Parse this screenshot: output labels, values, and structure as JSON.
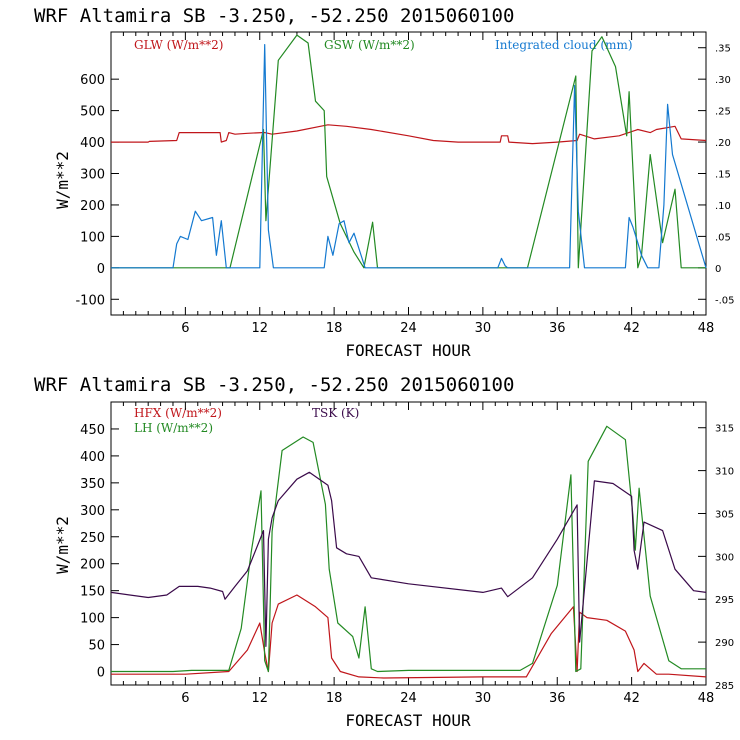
{
  "colors": {
    "red": "#c0161b",
    "green": "#238a23",
    "blue": "#1479d0",
    "purple": "#3a0a4a",
    "axis": "#000000"
  },
  "chart_data": [
    {
      "type": "line",
      "title": "WRF   Altamira  SB  -3.250, -52.250  2015060100",
      "xlabel": "FORECAST HOUR",
      "ylabel": "W/m**2",
      "xlim": [
        0,
        48
      ],
      "ylim": [
        -150,
        750
      ],
      "y2lim": [
        -0.075,
        0.375
      ],
      "xticks": [
        6,
        12,
        18,
        24,
        30,
        36,
        42,
        48
      ],
      "xtick_labels": [
        "6",
        "12",
        "18",
        "24",
        "30",
        "36",
        "42",
        "48"
      ],
      "yticks": [
        -100,
        0,
        100,
        200,
        300,
        400,
        500,
        600
      ],
      "ytick_labels": [
        "-100",
        "0",
        "100",
        "200",
        "300",
        "400",
        "500",
        "600"
      ],
      "y2ticks": [
        -0.05,
        0,
        0.05,
        0.1,
        0.15,
        0.2,
        0.25,
        0.3,
        0.35
      ],
      "y2tick_labels": [
        "-.05",
        "0",
        ".05",
        ".10",
        ".15",
        ".20",
        ".25",
        ".30",
        ".35"
      ],
      "legend": [
        "GLW (W/m**2)",
        "GSW (W/m**2)",
        "Integrated cloud (mm)"
      ],
      "series": [
        {
          "name": "GLW (W/m**2)",
          "color": "red",
          "axis": "left",
          "x": [
            0,
            3,
            3.1,
            5.3,
            5.5,
            8.8,
            8.9,
            9.3,
            9.5,
            10,
            11,
            12.2,
            12.4,
            13,
            15,
            17.5,
            19,
            21,
            24,
            26,
            28,
            30,
            31.4,
            31.5,
            32,
            32.1,
            34,
            36,
            37.6,
            37.8,
            39,
            41,
            42.5,
            43.5,
            44,
            45.5,
            46,
            48
          ],
          "y": [
            400,
            400,
            402,
            405,
            430,
            430,
            400,
            405,
            430,
            425,
            428,
            430,
            430,
            425,
            435,
            455,
            450,
            440,
            420,
            405,
            400,
            400,
            400,
            420,
            420,
            400,
            395,
            400,
            405,
            425,
            410,
            420,
            440,
            430,
            440,
            450,
            410,
            405
          ]
        },
        {
          "name": "GSW (W/m**2)",
          "color": "green",
          "axis": "left",
          "x": [
            0,
            9.6,
            12.3,
            12.5,
            13.5,
            15,
            15.9,
            16.5,
            17.2,
            17.4,
            18.5,
            19.6,
            20.4,
            21.1,
            21.5,
            33.6,
            37.5,
            37.7,
            38.8,
            39.6,
            40.7,
            41.6,
            41.8,
            42.5,
            42.8,
            43.5,
            44.5,
            45.5,
            46,
            48
          ],
          "y": [
            0,
            0,
            440,
            150,
            660,
            740,
            715,
            530,
            500,
            290,
            140,
            50,
            0,
            145,
            0,
            0,
            610,
            0,
            690,
            735,
            640,
            420,
            560,
            0,
            40,
            360,
            80,
            250,
            0,
            0
          ]
        },
        {
          "name": "Integrated cloud (mm)",
          "color": "blue",
          "axis": "right",
          "x": [
            0,
            5,
            5.3,
            5.6,
            6.2,
            6.8,
            7.3,
            8.2,
            8.5,
            8.9,
            9.3,
            12,
            12.4,
            12.7,
            13.1,
            17.2,
            17.5,
            17.9,
            18.4,
            18.8,
            19.2,
            19.6,
            20.5,
            31.2,
            31.5,
            31.8,
            32,
            37,
            37.4,
            37.7,
            38.2,
            41.5,
            41.8,
            42.1,
            42.5,
            42.8,
            43.3,
            44.2,
            44.6,
            44.9,
            45.3,
            48
          ],
          "y": [
            0,
            0,
            0.038,
            0.05,
            0.045,
            0.09,
            0.075,
            0.08,
            0.02,
            0.075,
            0,
            0,
            0.355,
            0.06,
            0,
            0,
            0.05,
            0.02,
            0.07,
            0.075,
            0.04,
            0.055,
            0,
            0,
            0.015,
            0.003,
            0,
            0,
            0.29,
            0.09,
            0,
            0,
            0.08,
            0.065,
            0.04,
            0.02,
            0,
            0,
            0.1,
            0.26,
            0.18,
            0
          ]
        }
      ]
    },
    {
      "type": "line",
      "title": "WRF   Altamira  SB  -3.250, -52.250  2015060100",
      "xlabel": "FORECAST HOUR",
      "ylabel": "W/m**2",
      "xlim": [
        0,
        48
      ],
      "ylim": [
        -25,
        500
      ],
      "y2lim": [
        285,
        318
      ],
      "xticks": [
        6,
        12,
        18,
        24,
        30,
        36,
        42,
        48
      ],
      "xtick_labels": [
        "6",
        "12",
        "18",
        "24",
        "30",
        "36",
        "42",
        "48"
      ],
      "yticks": [
        0,
        50,
        100,
        150,
        200,
        250,
        300,
        350,
        400,
        450
      ],
      "ytick_labels": [
        "0",
        "50",
        "100",
        "150",
        "200",
        "250",
        "300",
        "350",
        "400",
        "450"
      ],
      "y2ticks": [
        285,
        290,
        295,
        300,
        305,
        310,
        315
      ],
      "y2tick_labels": [
        "285",
        "290",
        "295",
        "300",
        "305",
        "310",
        "315"
      ],
      "legend": [
        "HFX (W/m**2)",
        "LH  (W/m**2)",
        "TSK (K)"
      ],
      "series": [
        {
          "name": "HFX (W/m**2)",
          "color": "red",
          "axis": "left",
          "x": [
            0,
            6,
            9.5,
            11,
            12,
            12.4,
            12.7,
            13,
            13.5,
            15,
            16.5,
            17.5,
            17.8,
            18.5,
            20,
            22,
            30,
            33.5,
            35.5,
            37.3,
            37.6,
            37.8,
            38.4,
            40,
            41.5,
            42.2,
            42.5,
            43,
            44,
            45,
            48
          ],
          "y": [
            -5,
            -5,
            0,
            40,
            90,
            35,
            0,
            90,
            125,
            142,
            120,
            100,
            25,
            0,
            -10,
            -12,
            -10,
            -10,
            70,
            120,
            0,
            110,
            100,
            95,
            75,
            40,
            0,
            15,
            -5,
            -5,
            -10
          ]
        },
        {
          "name": "LH  (W/m**2)",
          "color": "green",
          "axis": "left",
          "x": [
            0,
            5,
            6.5,
            9.5,
            10.5,
            11.3,
            12.1,
            12.4,
            12.7,
            13,
            13.8,
            15.5,
            16.3,
            17.3,
            17.6,
            18.3,
            19.5,
            20,
            20.5,
            21,
            21.5,
            24,
            30,
            33,
            34,
            36,
            37.1,
            37.5,
            37.9,
            38.5,
            40,
            41.5,
            42.1,
            42.3,
            42.6,
            43.5,
            45,
            46,
            48
          ],
          "y": [
            0,
            0,
            2,
            2,
            80,
            220,
            335,
            20,
            0,
            260,
            410,
            435,
            425,
            310,
            190,
            90,
            65,
            25,
            120,
            5,
            0,
            2,
            2,
            2,
            15,
            160,
            365,
            0,
            5,
            390,
            455,
            430,
            290,
            225,
            340,
            140,
            20,
            5,
            5
          ]
        },
        {
          "name": "TSK (K)",
          "color": "purple",
          "axis": "right",
          "x": [
            0,
            3,
            4.5,
            5.5,
            7,
            8,
            9,
            9.2,
            10,
            11,
            12.3,
            12.5,
            12.7,
            13,
            13.5,
            15,
            16,
            17.5,
            17.8,
            18.2,
            19,
            20,
            21,
            24,
            30,
            31.5,
            32,
            34,
            36,
            37.6,
            37.8,
            39,
            40.5,
            42,
            42.2,
            42.5,
            43,
            44.5,
            45.5,
            47,
            48
          ],
          "y": [
            295.8,
            295.2,
            295.5,
            296.5,
            296.5,
            296.3,
            295.9,
            295,
            296.5,
            298.3,
            303,
            289.5,
            302,
            304.5,
            306.5,
            309,
            309.8,
            308.3,
            306.5,
            301,
            300.3,
            300,
            297.5,
            296.8,
            295.8,
            296.3,
            295.3,
            297.5,
            302,
            306,
            290,
            308.8,
            308.5,
            307,
            300.7,
            298.5,
            304,
            303,
            298.5,
            296,
            295.8
          ]
        }
      ]
    }
  ]
}
